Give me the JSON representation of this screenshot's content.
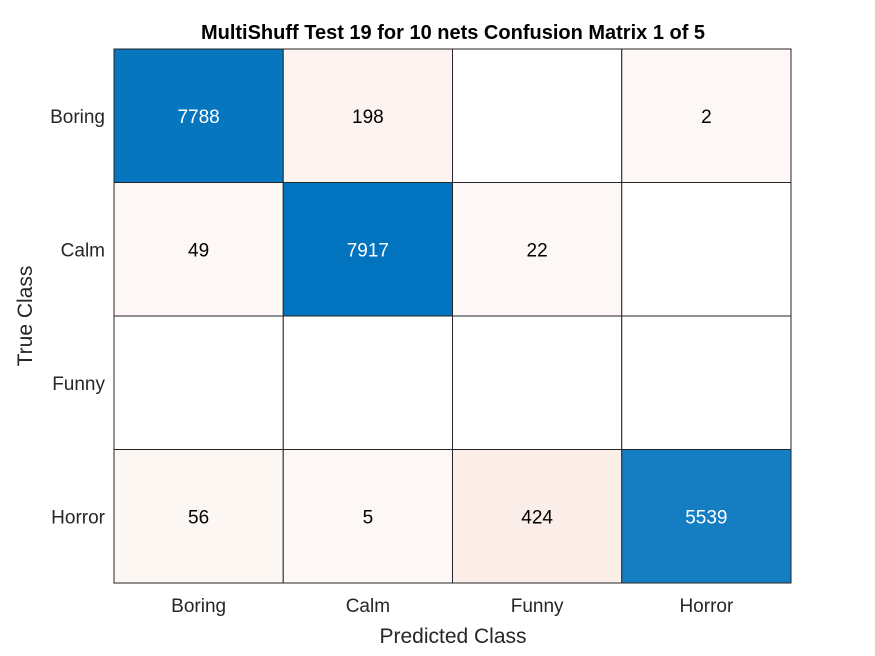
{
  "chart_data": {
    "type": "heatmap",
    "title": "MultiShuff Test 19 for 10 nets Confusion Matrix 1 of 5",
    "xlabel": "Predicted Class",
    "ylabel": "True Class",
    "x_categories": [
      "Boring",
      "Calm",
      "Funny",
      "Horror"
    ],
    "y_categories": [
      "Boring",
      "Calm",
      "Funny",
      "Horror"
    ],
    "values": [
      [
        7788,
        198,
        null,
        2
      ],
      [
        49,
        7917,
        22,
        null
      ],
      [
        null,
        null,
        null,
        null
      ],
      [
        56,
        5,
        424,
        5539
      ]
    ],
    "diagonal_color": "#0072BD",
    "offdiagonal_color": "#D95319",
    "grid": true
  }
}
